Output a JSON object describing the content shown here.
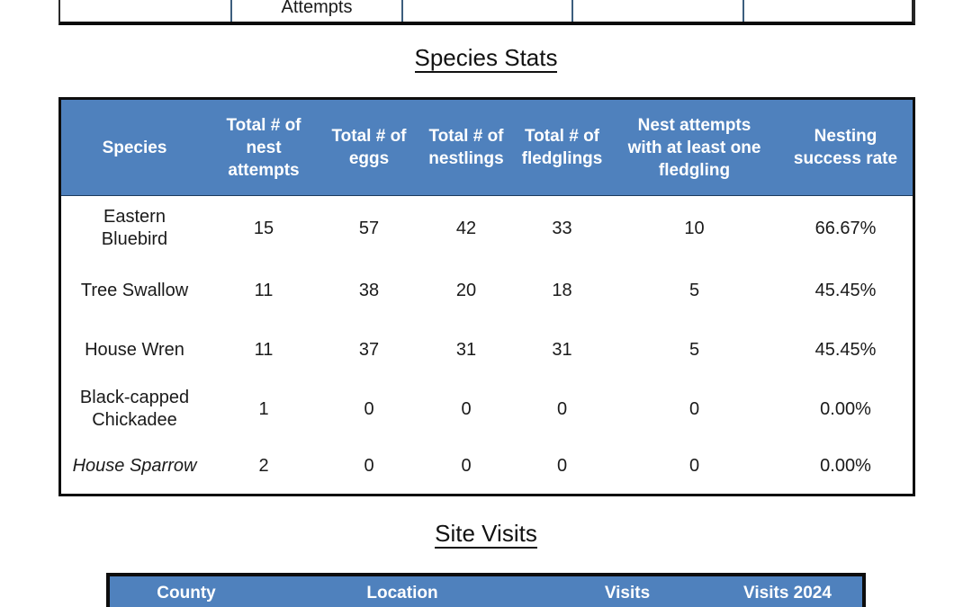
{
  "document": {
    "colors": {
      "header_blue": "#4F81BD",
      "divider_blue": "#3C5E7E",
      "border_black": "#0D0D0D"
    },
    "top_table_fragment": {
      "cells": [
        "",
        "Attempts",
        "",
        "",
        ""
      ]
    },
    "species_stats": {
      "title": "Species Stats",
      "columns": [
        "Species",
        "Total # of\nnest\nattempts",
        "Total # of\neggs",
        "Total # of\nnestlings",
        "Total # of\nfledglings",
        "Nest attempts\nwith at least one\nfledgling",
        "Nesting\nsuccess rate"
      ],
      "rows": [
        [
          "Eastern\nBluebird",
          "15",
          "57",
          "42",
          "33",
          "10",
          "66.67%"
        ],
        [
          "Tree Swallow",
          "11",
          "38",
          "20",
          "18",
          "5",
          "45.45%"
        ],
        [
          "House Wren",
          "11",
          "37",
          "31",
          "31",
          "5",
          "45.45%"
        ],
        [
          "Black-capped\nChickadee",
          "1",
          "0",
          "0",
          "0",
          "0",
          "0.00%"
        ],
        [
          "House Sparrow",
          "2",
          "0",
          "0",
          "0",
          "0",
          "0.00%"
        ]
      ]
    },
    "site_visits": {
      "title": "Site Visits",
      "columns": [
        "County",
        "Location",
        "Visits",
        "Visits 2024"
      ]
    }
  }
}
